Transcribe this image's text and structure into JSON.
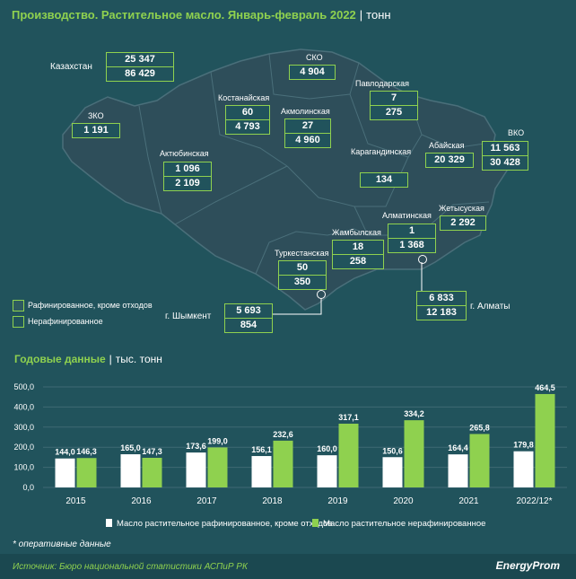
{
  "title": "Производство. Растительное масло. Январь-февраль 2022",
  "title_unit": "тонн",
  "map": {
    "regions": [
      {
        "name": "Казахстан",
        "refined": "25 347",
        "unrefined": "86 429"
      },
      {
        "name": "СКО",
        "refined": "",
        "unrefined": "4 904"
      },
      {
        "name": "Павлодарская",
        "refined": "7",
        "unrefined": "275"
      },
      {
        "name": "Костанайская",
        "refined": "60",
        "unrefined": "4 793"
      },
      {
        "name": "Акмолинская",
        "refined": "27",
        "unrefined": "4 960"
      },
      {
        "name": "ЗКО",
        "refined": "",
        "unrefined": "1 191"
      },
      {
        "name": "Актюбинская",
        "refined": "1 096",
        "unrefined": "2 109"
      },
      {
        "name": "Карагандинская",
        "refined": "",
        "unrefined": "134"
      },
      {
        "name": "Абайская",
        "refined": "",
        "unrefined": "20 329"
      },
      {
        "name": "ВКО",
        "refined": "11 563",
        "unrefined": "30 428"
      },
      {
        "name": "Жетысуская",
        "refined": "",
        "unrefined": "2 292"
      },
      {
        "name": "Алматинская",
        "refined": "1",
        "unrefined": "1 368"
      },
      {
        "name": "Жамбылская",
        "refined": "18",
        "unrefined": "258"
      },
      {
        "name": "Туркестанская",
        "refined": "50",
        "unrefined": "350"
      },
      {
        "name": "г. Шымкент",
        "refined": "5 693",
        "unrefined": "854"
      },
      {
        "name": "г. Алматы",
        "refined": "6 833",
        "unrefined": "12 183"
      }
    ],
    "legend": {
      "refined": "Рафинированное, кроме отходов",
      "unrefined": "Нерафинированное"
    }
  },
  "annual_title": "Годовые данные",
  "annual_unit": "тыс. тонн",
  "chart_data": {
    "type": "bar",
    "categories": [
      "2015",
      "2016",
      "2017",
      "2018",
      "2019",
      "2020",
      "2021",
      "2022/12*"
    ],
    "series": [
      {
        "name": "Масло растительное рафинированное, кроме отходов",
        "values": [
          144.0,
          165.0,
          173.6,
          156.1,
          160.0,
          150.6,
          164.4,
          179.8
        ],
        "labels": [
          "144,0",
          "165,0",
          "173,6",
          "156,1",
          "160,0",
          "150,6",
          "164,4",
          "179,8"
        ],
        "color": "#ffffff"
      },
      {
        "name": "Масло растительное нерафинированное",
        "values": [
          146.3,
          147.3,
          199.0,
          232.6,
          317.1,
          334.2,
          265.8,
          464.5
        ],
        "labels": [
          "146,3",
          "147,3",
          "199,0",
          "232,6",
          "317,1",
          "334,2",
          "265,8",
          "464,5"
        ],
        "color": "#8fd14f"
      }
    ],
    "yticks": [
      "0,0",
      "100,0",
      "200,0",
      "300,0",
      "400,0",
      "500,0"
    ],
    "ylim": [
      0,
      500
    ],
    "grid": true,
    "legend_position": "bottom"
  },
  "note": "* оперативные данные",
  "source": "Источник: Бюро национальной статистики АСПиР РК",
  "brand": "EnergyProm",
  "colors": {
    "background": "#21535c",
    "accent": "#8fd14f",
    "map_fill": "#2e4e5a"
  }
}
